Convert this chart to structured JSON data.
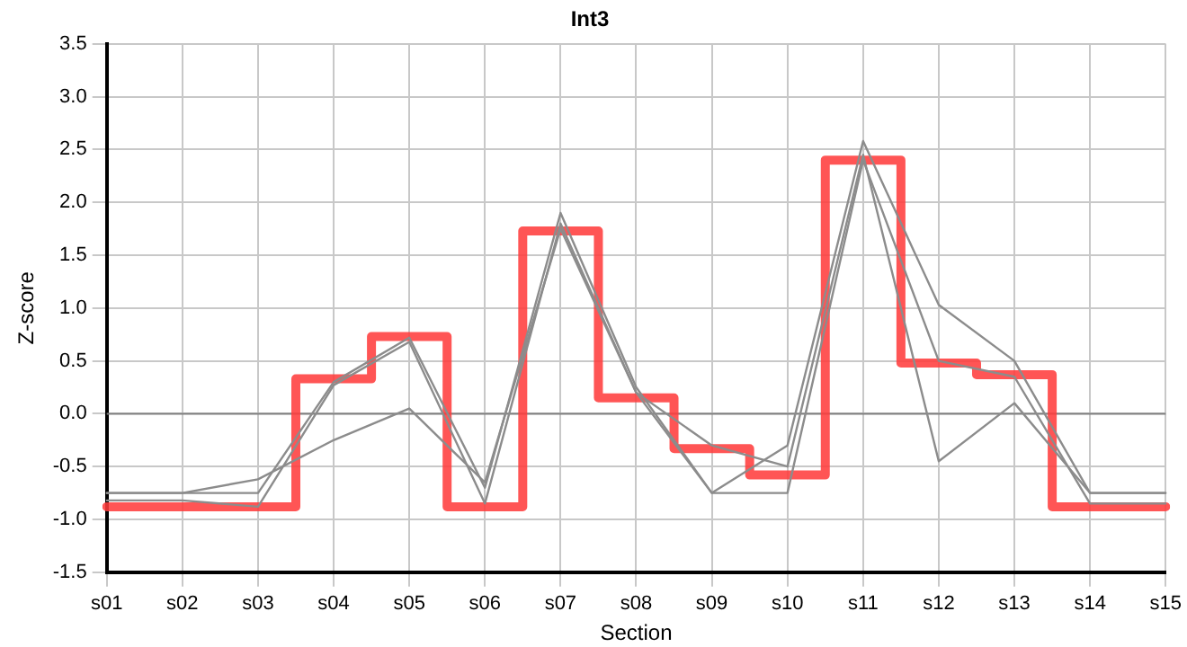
{
  "chart_data": {
    "type": "line",
    "title": "Int3",
    "xlabel": "Section",
    "ylabel": "Z-score",
    "categories": [
      "s01",
      "s02",
      "s03",
      "s04",
      "s05",
      "s06",
      "s07",
      "s08",
      "s09",
      "s10",
      "s11",
      "s12",
      "s13",
      "s14",
      "s15"
    ],
    "series": [
      {
        "color": "#8c8c8c",
        "values": [
          -0.75,
          -0.75,
          -0.62,
          -0.25,
          0.05,
          -0.65,
          1.75,
          0.2,
          -0.3,
          -0.5,
          2.45,
          -0.45,
          0.1,
          -0.75,
          -0.75
        ]
      },
      {
        "color": "#8c8c8c",
        "values": [
          -0.75,
          -0.75,
          -0.75,
          0.3,
          0.72,
          -0.7,
          1.9,
          0.25,
          -0.75,
          -0.3,
          2.58,
          1.03,
          0.5,
          -0.75,
          -0.75
        ]
      },
      {
        "color": "#8c8c8c",
        "values": [
          -0.82,
          -0.82,
          -0.88,
          0.27,
          0.68,
          -0.85,
          1.8,
          0.2,
          -0.75,
          -0.75,
          2.4,
          0.5,
          0.35,
          -0.85,
          -0.85
        ]
      },
      {
        "type": "step",
        "color": "#ff3b3b",
        "values": [
          -0.88,
          -0.88,
          -0.88,
          0.33,
          0.73,
          -0.88,
          1.73,
          0.15,
          -0.33,
          -0.58,
          2.4,
          0.48,
          0.37,
          -0.88,
          -0.88
        ]
      }
    ],
    "ylim": [
      -1.5,
      3.5
    ],
    "yticks": [
      {
        "value": -1.5,
        "label": "-1.5"
      },
      {
        "value": -1,
        "label": "-1.0"
      },
      {
        "value": -0.5,
        "label": "-0.5"
      },
      {
        "value": 0,
        "label": "0.0"
      },
      {
        "value": 0.5,
        "label": "0.5"
      },
      {
        "value": 1,
        "label": "1.0"
      },
      {
        "value": 1.5,
        "label": "1.5"
      },
      {
        "value": 2,
        "label": "2.0"
      },
      {
        "value": 2.5,
        "label": "2.5"
      },
      {
        "value": 3,
        "label": "3.0"
      },
      {
        "value": 3.5,
        "label": "3.5"
      }
    ],
    "ref_lines": [
      {
        "axis": "y",
        "value": 0,
        "color": "#808080"
      }
    ],
    "grid": true,
    "legend": false,
    "marker": "none"
  }
}
